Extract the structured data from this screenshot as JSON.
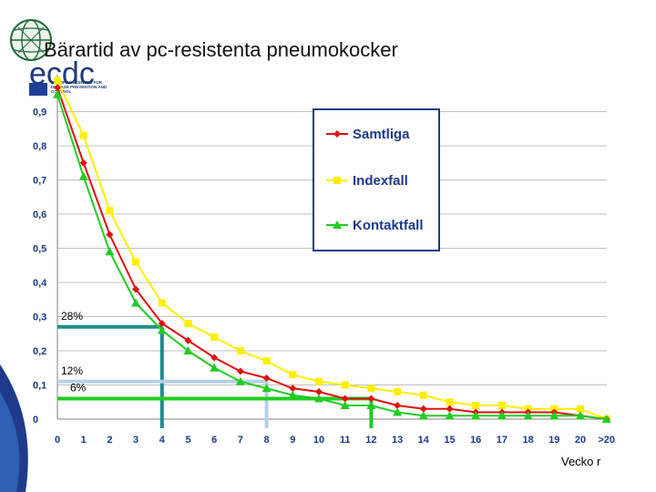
{
  "slide": {
    "title": "Bärartid av pc-resistenta pneumokocker",
    "logo_word": "ecdc",
    "logo_caption": [
      "EUROPEAN CENTRE FOR",
      "DISEASE PREVENTION AND",
      "CONTROL"
    ],
    "unit_label": "Vecko r"
  },
  "colors": {
    "samtliga": "#e01010",
    "indexfall": "#ffee00",
    "kontaktfall": "#22cc22",
    "axis_text": "#1a3a8a",
    "legend_border": "#1a3a8a",
    "grid": "#c0c0c0",
    "ref_28": "#1e8c8c",
    "ref_12": "#b8d0e6",
    "ref_6": "#22cc22"
  },
  "chart_data": {
    "type": "line",
    "title": "",
    "xlabel": "",
    "ylabel": "",
    "categories": [
      "0",
      "1",
      "2",
      "3",
      "4",
      "5",
      "6",
      "7",
      "8",
      "9",
      "10",
      "11",
      "12",
      "13",
      "14",
      "15",
      "16",
      "17",
      "18",
      "19",
      "20",
      ">20"
    ],
    "ylim": [
      0,
      1
    ],
    "yticks": [
      "0",
      "0,1",
      "0,2",
      "0,3",
      "0,4",
      "0,5",
      "0,6",
      "0,7",
      "0,8",
      "0,9"
    ],
    "grid": true,
    "legend_position": "top-right",
    "series": [
      {
        "name": "Samtliga",
        "marker": "diamond",
        "values": [
          0.97,
          0.75,
          0.54,
          0.38,
          0.28,
          0.23,
          0.18,
          0.14,
          0.12,
          0.09,
          0.08,
          0.06,
          0.06,
          0.04,
          0.03,
          0.03,
          0.02,
          0.02,
          0.02,
          0.02,
          0.01,
          0.0
        ]
      },
      {
        "name": "Indexfall",
        "marker": "square",
        "values": [
          0.99,
          0.83,
          0.61,
          0.46,
          0.34,
          0.28,
          0.24,
          0.2,
          0.17,
          0.13,
          0.11,
          0.1,
          0.09,
          0.08,
          0.07,
          0.05,
          0.04,
          0.04,
          0.03,
          0.03,
          0.03,
          0.0
        ]
      },
      {
        "name": "Kontaktfall",
        "marker": "triangle",
        "values": [
          0.95,
          0.71,
          0.49,
          0.34,
          0.26,
          0.2,
          0.15,
          0.11,
          0.09,
          0.07,
          0.06,
          0.04,
          0.04,
          0.02,
          0.01,
          0.01,
          0.01,
          0.01,
          0.01,
          0.01,
          0.01,
          0.0
        ]
      }
    ],
    "reference_lines": [
      {
        "label": "28%",
        "x": "4",
        "y": 0.27,
        "color_key": "ref_28"
      },
      {
        "label": "12%",
        "x": "8",
        "y": 0.11,
        "color_key": "ref_12"
      },
      {
        "label": "6%",
        "x": "12",
        "y": 0.06,
        "color_key": "ref_6"
      }
    ]
  }
}
